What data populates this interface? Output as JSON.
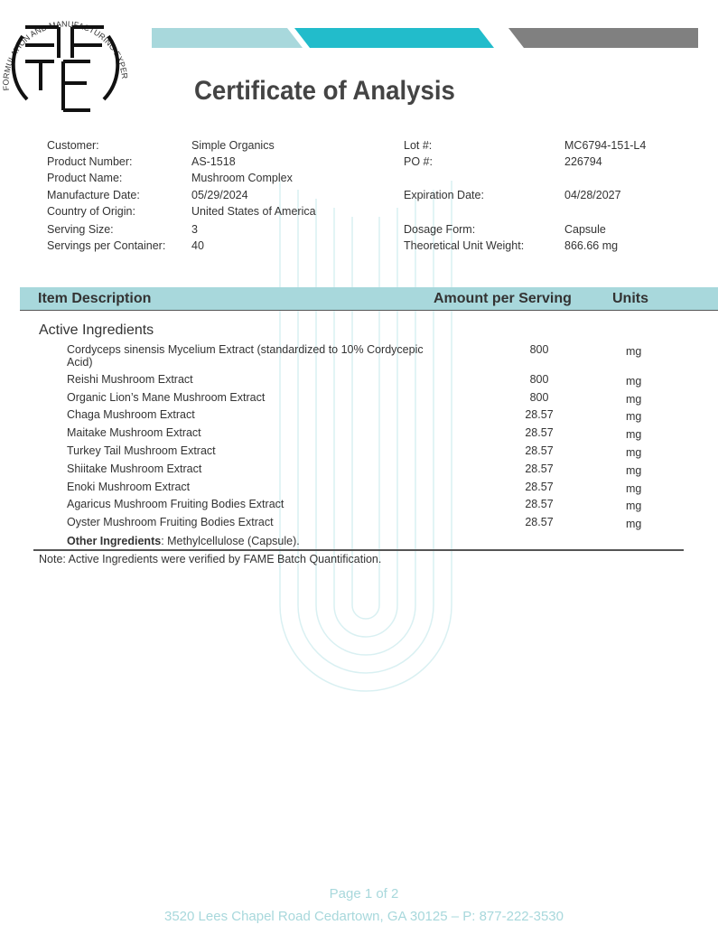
{
  "logo": {
    "text": "FORMULATION AND MANUFACTURING EXPERTS",
    "letters": "FAME"
  },
  "header": {
    "title": "Certificate of Analysis",
    "bar_colors": [
      "#a8d8dc",
      "#22bccb",
      "#808080"
    ]
  },
  "info": [
    {
      "label": "Customer:",
      "value": "Simple Organics"
    },
    {
      "label": "Product Number:",
      "value": "AS-1518"
    },
    {
      "label": "Product Name:",
      "value": "Mushroom Complex"
    },
    {
      "label": "Manufacture Date:",
      "value": "05/29/2024"
    },
    {
      "label": "Country of Origin:",
      "value": "United States of America"
    },
    {
      "label": "Serving Size:",
      "value": "3"
    },
    {
      "label": "Servings per Container:",
      "value": "40"
    }
  ],
  "info_right": [
    {
      "label": "Lot #:",
      "value": "MC6794-151-L4"
    },
    {
      "label": "PO #:",
      "value": "226794"
    },
    {
      "label": "Expiration Date:",
      "value": "04/28/2027"
    },
    {
      "label": "Dosage Form:",
      "value": "Capsule"
    },
    {
      "label": "Theoretical Unit Weight:",
      "value": "866.66 mg"
    }
  ],
  "table": {
    "headers": [
      "Item Description",
      "Amount per Serving",
      "Units"
    ],
    "section": "Active Ingredients",
    "rows": [
      {
        "name": "Cordyceps sinensis Mycelium Extract (standardized to 10% Cordycepic",
        "name2": "Acid)",
        "amount": "800",
        "unit": "mg"
      },
      {
        "name": "Reishi Mushroom Extract",
        "amount": "800",
        "unit": "mg"
      },
      {
        "name": "Organic Lion’s Mane Mushroom Extract",
        "amount": "800",
        "unit": "mg"
      },
      {
        "name": "Chaga Mushroom Extract",
        "amount": "28.57",
        "unit": "mg"
      },
      {
        "name": "Maitake Mushroom Extract",
        "amount": "28.57",
        "unit": "mg"
      },
      {
        "name": "Turkey Tail Mushroom Extract",
        "amount": "28.57",
        "unit": "mg"
      },
      {
        "name": "Shiitake Mushroom Extract",
        "amount": "28.57",
        "unit": "mg"
      },
      {
        "name": "Enoki Mushroom Extract",
        "amount": "28.57",
        "unit": "mg"
      },
      {
        "name": "Agaricus Mushroom Fruiting Bodies Extract",
        "amount": "28.57",
        "unit": "mg"
      },
      {
        "name": "Oyster Mushroom Fruiting Bodies Extract",
        "amount": "28.57",
        "unit": "mg"
      }
    ],
    "other_label": "Other Ingredients",
    "other_value": ": Methylcellulose (Capsule)."
  },
  "note": "Note: Active Ingredients were verified by FAME Batch Quantification.",
  "footer": {
    "page": "Page 1 of 2",
    "address": "3520 Lees Chapel Road Cedartown, GA 30125 – P: 877-222-3530"
  }
}
